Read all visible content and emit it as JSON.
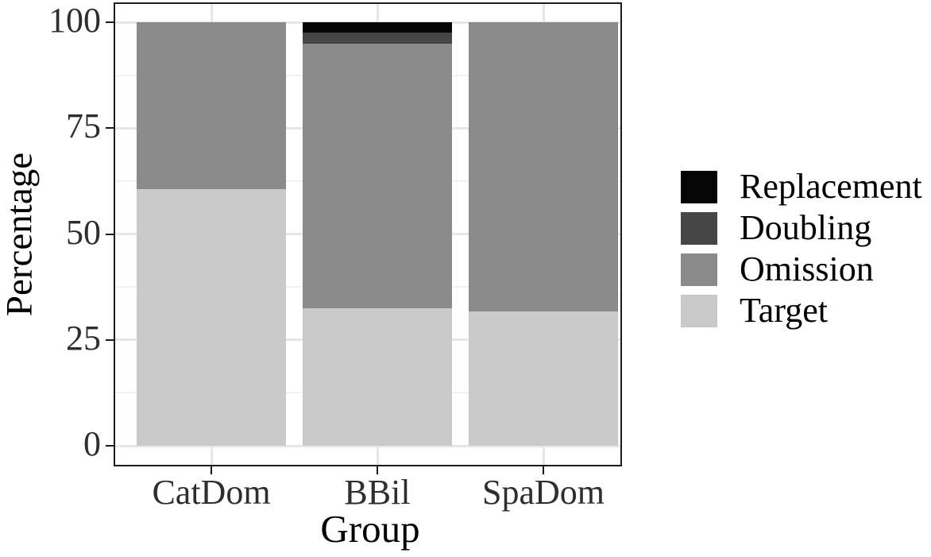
{
  "chart_data": {
    "type": "bar",
    "stacked": true,
    "title": "",
    "xlabel": "Group",
    "ylabel": "Percentage",
    "ylim": [
      0,
      100
    ],
    "y_ticks": [
      0,
      25,
      50,
      75,
      100
    ],
    "y_minor_ticks": [
      12.5,
      37.5,
      62.5,
      87.5
    ],
    "categories": [
      "CatDom",
      "BBil",
      "SpaDom"
    ],
    "series": [
      {
        "name": "Replacement",
        "color": "#050505",
        "values": [
          0,
          2.5,
          0
        ]
      },
      {
        "name": "Doubling",
        "color": "#464646",
        "values": [
          0,
          2.5,
          0
        ]
      },
      {
        "name": "Omission",
        "color": "#8a8a8a",
        "values": [
          39.4,
          62.5,
          68.3
        ]
      },
      {
        "name": "Target",
        "color": "#c9c9c9",
        "values": [
          60.6,
          32.5,
          31.7
        ]
      }
    ],
    "legend": {
      "position": "right",
      "entries": [
        "Replacement",
        "Doubling",
        "Omission",
        "Target"
      ]
    },
    "grid": true
  }
}
